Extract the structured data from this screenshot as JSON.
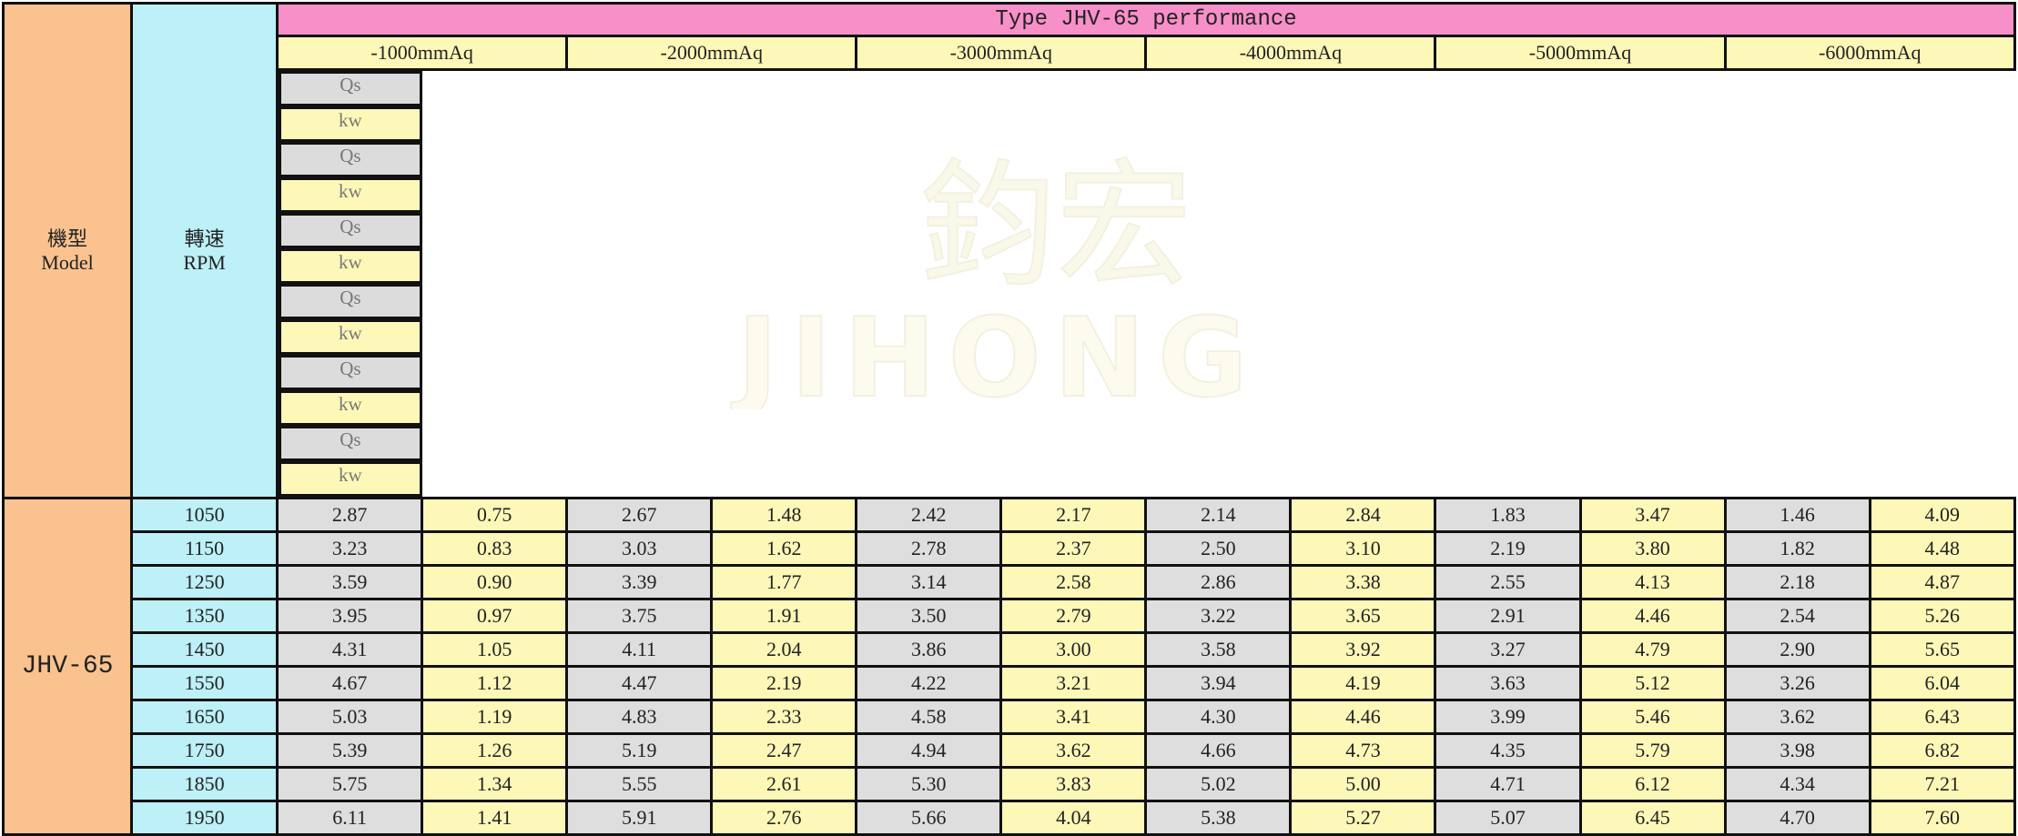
{
  "header": {
    "model_zh": "機型",
    "model_en": "Model",
    "rpm_zh": "轉速",
    "rpm_en": "RPM",
    "title": "Type JHV-65 performance"
  },
  "pressures": [
    "-1000mmAq",
    "-2000mmAq",
    "-3000mmAq",
    "-4000mmAq",
    "-5000mmAq",
    "-6000mmAq"
  ],
  "sub_headers": {
    "qs": "Qs",
    "kw": "kw"
  },
  "model_name": "JHV-65",
  "rows": [
    {
      "rpm": "1050",
      "values": [
        "2.87",
        "0.75",
        "2.67",
        "1.48",
        "2.42",
        "2.17",
        "2.14",
        "2.84",
        "1.83",
        "3.47",
        "1.46",
        "4.09"
      ]
    },
    {
      "rpm": "1150",
      "values": [
        "3.23",
        "0.83",
        "3.03",
        "1.62",
        "2.78",
        "2.37",
        "2.50",
        "3.10",
        "2.19",
        "3.80",
        "1.82",
        "4.48"
      ]
    },
    {
      "rpm": "1250",
      "values": [
        "3.59",
        "0.90",
        "3.39",
        "1.77",
        "3.14",
        "2.58",
        "2.86",
        "3.38",
        "2.55",
        "4.13",
        "2.18",
        "4.87"
      ]
    },
    {
      "rpm": "1350",
      "values": [
        "3.95",
        "0.97",
        "3.75",
        "1.91",
        "3.50",
        "2.79",
        "3.22",
        "3.65",
        "2.91",
        "4.46",
        "2.54",
        "5.26"
      ]
    },
    {
      "rpm": "1450",
      "values": [
        "4.31",
        "1.05",
        "4.11",
        "2.04",
        "3.86",
        "3.00",
        "3.58",
        "3.92",
        "3.27",
        "4.79",
        "2.90",
        "5.65"
      ]
    },
    {
      "rpm": "1550",
      "values": [
        "4.67",
        "1.12",
        "4.47",
        "2.19",
        "4.22",
        "3.21",
        "3.94",
        "4.19",
        "3.63",
        "5.12",
        "3.26",
        "6.04"
      ]
    },
    {
      "rpm": "1650",
      "values": [
        "5.03",
        "1.19",
        "4.83",
        "2.33",
        "4.58",
        "3.41",
        "4.30",
        "4.46",
        "3.99",
        "5.46",
        "3.62",
        "6.43"
      ]
    },
    {
      "rpm": "1750",
      "values": [
        "5.39",
        "1.26",
        "5.19",
        "2.47",
        "4.94",
        "3.62",
        "4.66",
        "4.73",
        "4.35",
        "5.79",
        "3.98",
        "6.82"
      ]
    },
    {
      "rpm": "1850",
      "values": [
        "5.75",
        "1.34",
        "5.55",
        "2.61",
        "5.30",
        "3.83",
        "5.02",
        "5.00",
        "4.71",
        "6.12",
        "4.34",
        "7.21"
      ]
    },
    {
      "rpm": "1950",
      "values": [
        "6.11",
        "1.41",
        "5.91",
        "2.76",
        "5.66",
        "4.04",
        "5.38",
        "5.27",
        "5.07",
        "6.45",
        "4.70",
        "7.60"
      ]
    }
  ],
  "watermark": {
    "chars": "鈞宏",
    "latin": "JIHONG"
  },
  "colors": {
    "model": "#f9c28f",
    "rpm": "#bdf0f7",
    "title": "#f78fc8",
    "pressure": "#fdf8b8",
    "qs": "#dedede",
    "kw": "#fdf8b8"
  }
}
